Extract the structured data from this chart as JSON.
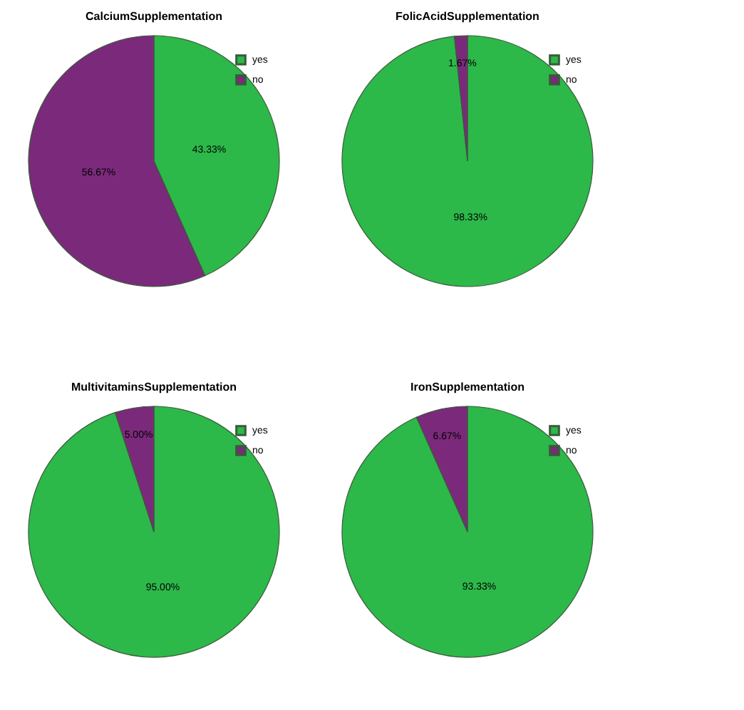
{
  "chart_data": [
    {
      "type": "pie",
      "title": "CalciumSupplementation",
      "categories": [
        "yes",
        "no"
      ],
      "values": [
        43.33,
        56.67
      ],
      "colors": [
        "#2db84a",
        "#7b2a7b"
      ],
      "value_labels": [
        "43.33%",
        "56.67%"
      ],
      "legend": "top right"
    },
    {
      "type": "pie",
      "title": "FolicAcidSupplementation",
      "categories": [
        "yes",
        "no"
      ],
      "values": [
        98.33,
        1.67
      ],
      "colors": [
        "#2db84a",
        "#7b2a7b"
      ],
      "value_labels": [
        "98.33%",
        "1.67%"
      ],
      "legend": "top right"
    },
    {
      "type": "pie",
      "title": "MultivitaminsSupplementation",
      "categories": [
        "yes",
        "no"
      ],
      "values": [
        95.0,
        5.0
      ],
      "colors": [
        "#2db84a",
        "#7b2a7b"
      ],
      "value_labels": [
        "95.00%",
        "5.00%"
      ],
      "legend": "top right"
    },
    {
      "type": "pie",
      "title": "IronSupplementation",
      "categories": [
        "yes",
        "no"
      ],
      "values": [
        93.33,
        6.67
      ],
      "colors": [
        "#2db84a",
        "#7b2a7b"
      ],
      "value_labels": [
        "93.33%",
        "6.67%"
      ],
      "legend": "top right"
    }
  ]
}
